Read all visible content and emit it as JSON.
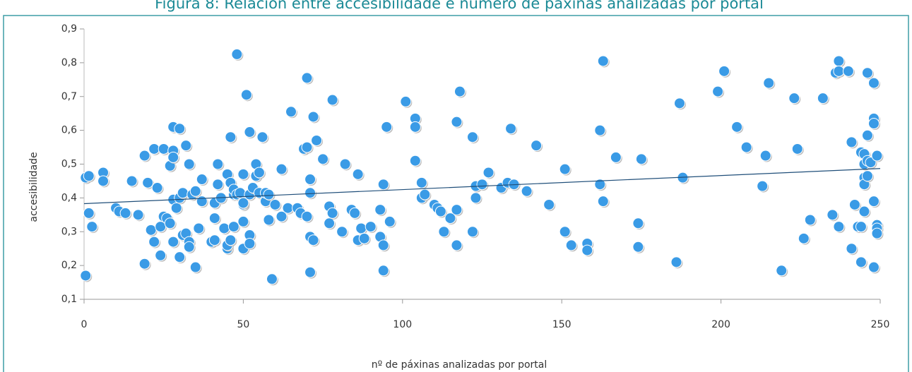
{
  "chart_data": {
    "type": "scatter",
    "title": "Figura 8: Relación entre accesibilidade e número de páxinas analizadas por portal",
    "xlabel": "nº de páxinas analizadas por portal",
    "ylabel": "accesibilidade",
    "color": "#3a9be6",
    "xlim": [
      0,
      250
    ],
    "xticks": [
      0,
      50,
      100,
      150,
      200,
      250
    ],
    "ylim": [
      0.1,
      0.9
    ],
    "yticks": [
      {
        "value": 0.1,
        "label": "0,1"
      },
      {
        "value": 0.2,
        "label": "0,2"
      },
      {
        "value": 0.3,
        "label": "0,3"
      },
      {
        "value": 0.4,
        "label": "0,4"
      },
      {
        "value": 0.5,
        "label": "0,5"
      },
      {
        "value": 0.6,
        "label": "0,6"
      },
      {
        "value": 0.7,
        "label": "0,7"
      },
      {
        "value": 0.8,
        "label": "0,8"
      },
      {
        "value": 0.9,
        "label": "0,9"
      }
    ],
    "trendline": {
      "color": "#1f4e79",
      "x": [
        0,
        250
      ],
      "y": [
        0.383,
        0.487
      ]
    },
    "x": [
      0.5,
      1.5,
      0.5,
      1.5,
      2.5,
      6,
      6,
      10,
      11,
      13,
      15,
      17,
      19,
      19,
      20,
      21,
      22,
      22,
      23,
      24,
      24,
      25,
      25,
      26,
      27,
      27,
      28,
      28,
      28,
      28,
      28,
      29,
      30,
      30,
      30,
      31,
      31,
      32,
      32,
      33,
      33,
      33,
      34,
      35,
      35,
      36,
      37,
      37,
      40,
      41,
      41,
      41,
      42,
      42,
      43,
      44,
      45,
      45,
      45,
      46,
      46,
      46,
      47,
      47,
      47,
      48,
      48,
      49,
      50,
      50,
      50,
      50,
      50,
      51,
      52,
      52,
      52,
      52,
      53,
      54,
      54,
      55,
      55,
      56,
      57,
      57,
      58,
      58,
      59,
      60,
      62,
      62,
      64,
      65,
      67,
      68,
      69,
      70,
      70,
      70,
      71,
      71,
      71,
      71,
      72,
      72,
      73,
      75,
      77,
      77,
      78,
      78,
      81,
      82,
      84,
      85,
      86,
      86,
      87,
      88,
      90,
      93,
      93,
      94,
      94,
      94,
      95,
      96,
      101,
      104,
      104,
      104,
      106,
      106,
      107,
      110,
      111,
      112,
      113,
      115,
      117,
      117,
      117,
      118,
      122,
      122,
      123,
      123,
      125,
      127,
      131,
      133,
      134,
      135,
      139,
      142,
      146,
      151,
      151,
      153,
      158,
      158,
      162,
      162,
      163,
      163,
      167,
      174,
      174,
      175,
      186,
      187,
      188,
      199,
      201,
      205,
      208,
      213,
      214,
      215,
      219,
      223,
      224,
      226,
      228,
      232,
      235,
      236,
      237,
      237,
      237,
      240,
      241,
      241,
      242,
      243,
      244,
      244,
      244,
      245,
      245,
      245,
      245,
      245,
      246,
      246,
      246,
      246,
      247,
      248,
      248,
      248,
      248,
      248,
      249,
      249,
      249,
      249
    ],
    "values": [
      0.46,
      0.465,
      0.17,
      0.355,
      0.315,
      0.475,
      0.45,
      0.37,
      0.36,
      0.355,
      0.45,
      0.35,
      0.525,
      0.205,
      0.445,
      0.305,
      0.545,
      0.27,
      0.43,
      0.315,
      0.23,
      0.345,
      0.545,
      0.34,
      0.495,
      0.325,
      0.61,
      0.54,
      0.52,
      0.27,
      0.395,
      0.37,
      0.605,
      0.4,
      0.225,
      0.415,
      0.29,
      0.555,
      0.295,
      0.5,
      0.27,
      0.255,
      0.41,
      0.42,
      0.195,
      0.31,
      0.455,
      0.39,
      0.27,
      0.385,
      0.34,
      0.275,
      0.5,
      0.44,
      0.4,
      0.31,
      0.47,
      0.25,
      0.26,
      0.58,
      0.445,
      0.275,
      0.41,
      0.315,
      0.425,
      0.825,
      0.41,
      0.415,
      0.47,
      0.38,
      0.385,
      0.33,
      0.25,
      0.705,
      0.595,
      0.41,
      0.29,
      0.265,
      0.43,
      0.5,
      0.465,
      0.475,
      0.415,
      0.58,
      0.39,
      0.415,
      0.335,
      0.41,
      0.16,
      0.38,
      0.485,
      0.345,
      0.37,
      0.655,
      0.37,
      0.355,
      0.545,
      0.755,
      0.55,
      0.345,
      0.455,
      0.415,
      0.285,
      0.18,
      0.64,
      0.275,
      0.57,
      0.515,
      0.375,
      0.325,
      0.69,
      0.355,
      0.3,
      0.5,
      0.365,
      0.355,
      0.47,
      0.275,
      0.31,
      0.28,
      0.315,
      0.365,
      0.285,
      0.44,
      0.26,
      0.185,
      0.61,
      0.33,
      0.685,
      0.635,
      0.61,
      0.51,
      0.445,
      0.4,
      0.41,
      0.38,
      0.37,
      0.36,
      0.3,
      0.34,
      0.625,
      0.365,
      0.26,
      0.715,
      0.58,
      0.3,
      0.435,
      0.4,
      0.44,
      0.475,
      0.43,
      0.445,
      0.605,
      0.44,
      0.42,
      0.555,
      0.38,
      0.485,
      0.3,
      0.26,
      0.265,
      0.245,
      0.6,
      0.44,
      0.805,
      0.39,
      0.52,
      0.325,
      0.255,
      0.515,
      0.21,
      0.68,
      0.46,
      0.715,
      0.775,
      0.61,
      0.55,
      0.435,
      0.525,
      0.74,
      0.185,
      0.695,
      0.545,
      0.28,
      0.335,
      0.695,
      0.35,
      0.77,
      0.805,
      0.775,
      0.315,
      0.775,
      0.565,
      0.25,
      0.38,
      0.315,
      0.535,
      0.315,
      0.21,
      0.53,
      0.5,
      0.46,
      0.44,
      0.36,
      0.585,
      0.465,
      0.51,
      0.77,
      0.505,
      0.635,
      0.62,
      0.74,
      0.39,
      0.195,
      0.525,
      0.32,
      0.31,
      0.295
    ]
  }
}
